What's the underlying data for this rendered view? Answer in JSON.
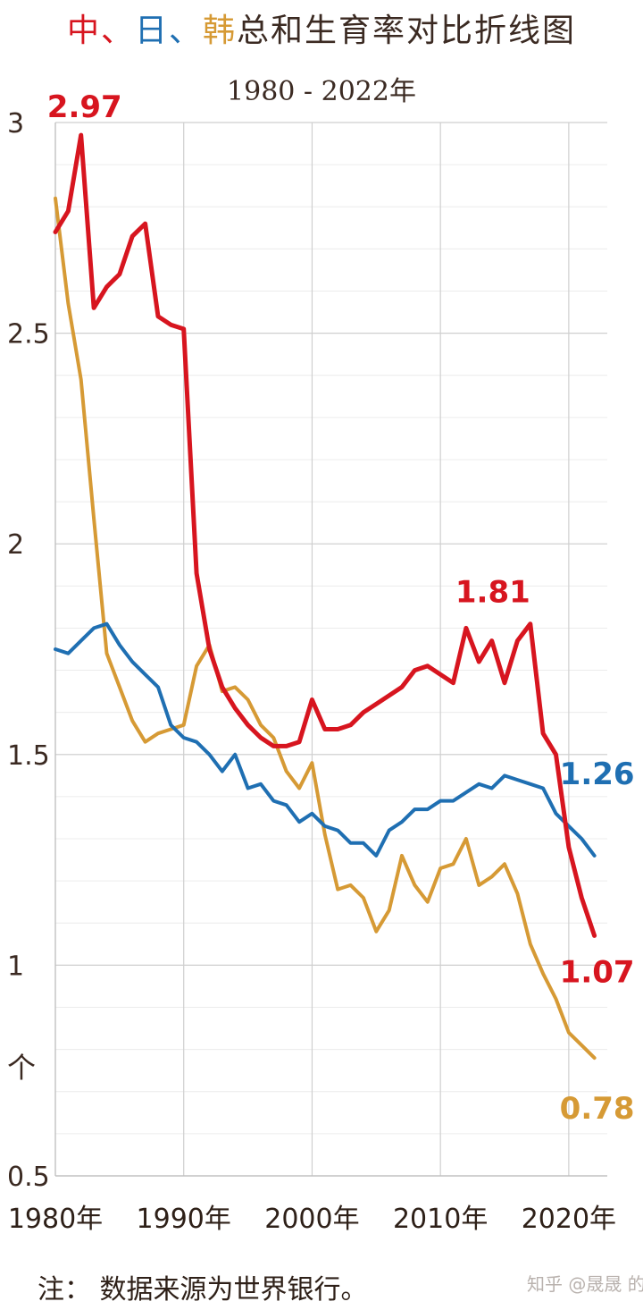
{
  "chart_data": {
    "type": "line",
    "title_parts": [
      {
        "text": "中",
        "color": "#d7151f"
      },
      {
        "text": "、",
        "color": "#d7151f"
      },
      {
        "text": "日",
        "color": "#1f6fb2"
      },
      {
        "text": "、",
        "color": "#1f6fb2"
      },
      {
        "text": "韩",
        "color": "#d69a35"
      },
      {
        "text": "总和生育率对比折线图",
        "color": "#3b2a22"
      }
    ],
    "subtitle": "1980 - 2022年",
    "ylabel": "个",
    "ylim": [
      0.5,
      3
    ],
    "xlim": [
      1980,
      2023
    ],
    "y_ticks": [
      {
        "value": 3,
        "label": "3"
      },
      {
        "value": 2.5,
        "label": "2.5"
      },
      {
        "value": 2,
        "label": "2"
      },
      {
        "value": 1.5,
        "label": "1.5"
      },
      {
        "value": 1,
        "label": "1"
      },
      {
        "value": 0.5,
        "label": "0.5"
      }
    ],
    "y_minor_step": 0.1,
    "x_ticks": [
      {
        "value": 1980,
        "label": "1980年"
      },
      {
        "value": 1990,
        "label": "1990年"
      },
      {
        "value": 2000,
        "label": "2000年"
      },
      {
        "value": 2010,
        "label": "2010年"
      },
      {
        "value": 2020,
        "label": "2020年"
      }
    ],
    "grid": true,
    "note": "注：  数据来源为世界银行。",
    "watermark": "知乎 @晟晟 的会计",
    "x": [
      1980,
      1981,
      1982,
      1983,
      1984,
      1985,
      1986,
      1987,
      1988,
      1989,
      1990,
      1991,
      1992,
      1993,
      1994,
      1995,
      1996,
      1997,
      1998,
      1999,
      2000,
      2001,
      2002,
      2003,
      2004,
      2005,
      2006,
      2007,
      2008,
      2009,
      2010,
      2011,
      2012,
      2013,
      2014,
      2015,
      2016,
      2017,
      2018,
      2019,
      2020,
      2021,
      2022
    ],
    "series": [
      {
        "key": "china",
        "color": "#d7151f",
        "values": [
          2.74,
          2.79,
          2.97,
          2.56,
          2.61,
          2.64,
          2.73,
          2.76,
          2.54,
          2.52,
          2.51,
          1.93,
          1.75,
          1.66,
          1.61,
          1.57,
          1.54,
          1.52,
          1.52,
          1.53,
          1.63,
          1.56,
          1.56,
          1.57,
          1.6,
          1.62,
          1.64,
          1.66,
          1.7,
          1.71,
          1.69,
          1.67,
          1.8,
          1.72,
          1.77,
          1.67,
          1.77,
          1.81,
          1.55,
          1.5,
          1.28,
          1.16,
          1.07
        ],
        "label_points": [
          {
            "index": 2,
            "text": "2.97"
          },
          {
            "index": 37,
            "text": "1.81"
          },
          {
            "index": 42,
            "text": "1.07"
          }
        ]
      },
      {
        "key": "japan",
        "color": "#1f6fb2",
        "values": [
          1.75,
          1.74,
          1.77,
          1.8,
          1.81,
          1.76,
          1.72,
          1.69,
          1.66,
          1.57,
          1.54,
          1.53,
          1.5,
          1.46,
          1.5,
          1.42,
          1.43,
          1.39,
          1.38,
          1.34,
          1.36,
          1.33,
          1.32,
          1.29,
          1.29,
          1.26,
          1.32,
          1.34,
          1.37,
          1.37,
          1.39,
          1.39,
          1.41,
          1.43,
          1.42,
          1.45,
          1.44,
          1.43,
          1.42,
          1.36,
          1.33,
          1.3,
          1.26
        ],
        "label_points": [
          {
            "index": 42,
            "text": "1.26"
          }
        ]
      },
      {
        "key": "korea",
        "color": "#d69a35",
        "values": [
          2.82,
          2.57,
          2.39,
          2.06,
          1.74,
          1.66,
          1.58,
          1.53,
          1.55,
          1.56,
          1.57,
          1.71,
          1.76,
          1.65,
          1.66,
          1.63,
          1.57,
          1.54,
          1.46,
          1.42,
          1.48,
          1.31,
          1.18,
          1.19,
          1.16,
          1.08,
          1.13,
          1.26,
          1.19,
          1.15,
          1.23,
          1.24,
          1.3,
          1.19,
          1.21,
          1.24,
          1.17,
          1.05,
          0.98,
          0.92,
          0.84,
          0.81,
          0.78
        ],
        "label_points": [
          {
            "index": 42,
            "text": "0.78"
          }
        ]
      }
    ]
  }
}
